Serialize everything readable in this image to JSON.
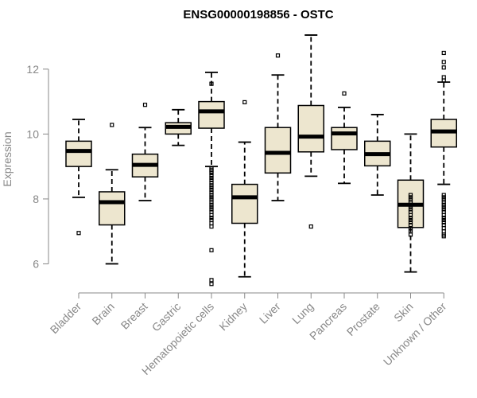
{
  "chart_data": {
    "type": "box",
    "title": "ENSG00000198856 - OSTC",
    "xlabel": "",
    "ylabel": "Expression",
    "ylim": [
      5.3,
      13.1
    ],
    "yticks": [
      6,
      8,
      10,
      12
    ],
    "categories": [
      "Bladder",
      "Brain",
      "Breast",
      "Gastric",
      "Hematopoietic cells",
      "Kidney",
      "Liver",
      "Lung",
      "Pancreas",
      "Prostate",
      "Skin",
      "Unknown / Other"
    ],
    "boxes": [
      {
        "min": 8.05,
        "q1": 9.0,
        "median": 9.48,
        "q3": 9.78,
        "max": 10.45,
        "outliers": [
          6.95
        ]
      },
      {
        "min": 6.0,
        "q1": 7.2,
        "median": 7.9,
        "q3": 8.22,
        "max": 8.9,
        "outliers": [
          10.28
        ]
      },
      {
        "min": 7.95,
        "q1": 8.68,
        "median": 9.05,
        "q3": 9.38,
        "max": 10.2,
        "outliers": [
          10.9
        ]
      },
      {
        "min": 9.65,
        "q1": 10.0,
        "median": 10.22,
        "q3": 10.35,
        "max": 10.75,
        "outliers": []
      },
      {
        "min": 9.0,
        "q1": 10.18,
        "median": 10.7,
        "q3": 11.0,
        "max": 11.9,
        "outliers": [
          8.95,
          8.9,
          8.85,
          8.8,
          8.72,
          8.65,
          8.58,
          8.5,
          8.42,
          8.35,
          8.28,
          8.2,
          8.12,
          8.05,
          7.98,
          7.9,
          7.82,
          7.75,
          7.68,
          7.6,
          7.5,
          7.42,
          7.35,
          7.25,
          7.15,
          6.42,
          5.5,
          5.38,
          11.55
        ]
      },
      {
        "min": 5.6,
        "q1": 7.25,
        "median": 8.05,
        "q3": 8.45,
        "max": 9.75,
        "outliers": [
          10.98
        ]
      },
      {
        "min": 7.95,
        "q1": 8.8,
        "median": 9.42,
        "q3": 10.2,
        "max": 11.82,
        "outliers": [
          12.42
        ]
      },
      {
        "min": 8.7,
        "q1": 9.45,
        "median": 9.92,
        "q3": 10.88,
        "max": 13.05,
        "outliers": [
          7.15
        ]
      },
      {
        "min": 8.48,
        "q1": 9.52,
        "median": 10.02,
        "q3": 10.2,
        "max": 10.82,
        "outliers": [
          11.25
        ]
      },
      {
        "min": 8.12,
        "q1": 9.02,
        "median": 9.38,
        "q3": 9.78,
        "max": 10.6,
        "outliers": []
      },
      {
        "min": 5.75,
        "q1": 7.12,
        "median": 7.82,
        "q3": 8.58,
        "max": 10.0,
        "outliers": [
          8.12,
          8.05,
          7.98,
          7.9,
          7.82,
          7.75,
          7.68,
          7.6,
          7.5,
          7.42,
          7.35,
          7.28,
          7.2,
          7.1,
          7.0,
          6.9
        ]
      },
      {
        "min": 8.45,
        "q1": 9.6,
        "median": 10.08,
        "q3": 10.45,
        "max": 11.6,
        "outliers": [
          11.65,
          11.75,
          12.05,
          12.22,
          12.5,
          8.12,
          8.05,
          7.98,
          7.9,
          7.82,
          7.75,
          7.68,
          7.6,
          7.5,
          7.42,
          7.35,
          7.28,
          7.2,
          7.1,
          7.0,
          6.9,
          6.85
        ]
      }
    ]
  }
}
